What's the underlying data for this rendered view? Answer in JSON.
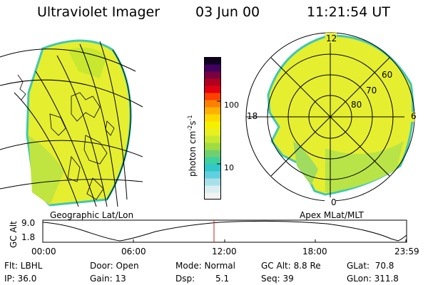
{
  "header": {
    "title": "Ultraviolet Imager",
    "date": "03 Jun 00",
    "time": "11:21:54 UT"
  },
  "left_panel": {
    "label": "Geographic Lat/Lon"
  },
  "right_panel": {
    "label": "Apex MLat/MLT",
    "mlt_labels": {
      "top": "12",
      "left": "18",
      "right": "6",
      "bottom": "0"
    },
    "lat_rings": [
      "80",
      "70",
      "60"
    ]
  },
  "colorbar": {
    "unit": "photon cm",
    "unit_exp1": "-2",
    "unit_mid": "s",
    "unit_exp2": "-1",
    "ticks": [
      "100",
      "10"
    ],
    "colors": [
      "#f2f2f2",
      "#d8eef0",
      "#a8e0e8",
      "#60d0e0",
      "#30c8c8",
      "#40d0a0",
      "#70d070",
      "#a0dc40",
      "#c8e830",
      "#e8f020",
      "#f4f000",
      "#ffd800",
      "#ffb000",
      "#ff8000",
      "#ff4000",
      "#e00010",
      "#b00020",
      "#780040",
      "#400060",
      "#100020"
    ]
  },
  "timeline": {
    "axis_label": "GC Alt",
    "y_ticks": [
      "9.0",
      "1.8"
    ],
    "x_ticks": [
      "00:00",
      "06:00",
      "12:00",
      "18:00",
      "23:59"
    ],
    "marker_time": "11:21:54"
  },
  "status": {
    "flt": "Flt: LBHL",
    "ip": "IP: 36.0",
    "door": "Door: Open",
    "gain": "Gain: 13",
    "mode": "Mode: Normal",
    "dsp_label": "Dsp:",
    "dsp_value": "5.1",
    "gcalt": "GC Alt: 8.8 Re",
    "seq": "Seq: 39",
    "glat": "GLat:  70.8",
    "glon": "GLon: 311.8"
  }
}
